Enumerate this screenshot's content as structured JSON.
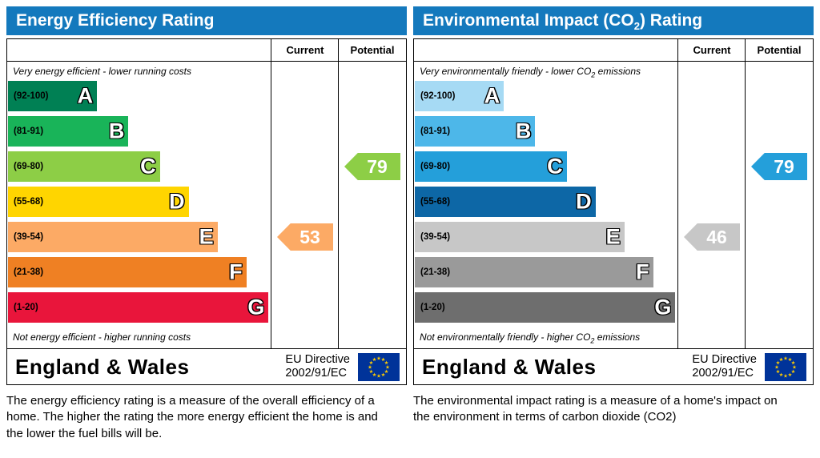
{
  "colors": {
    "header_blue": "#1479bd",
    "flag_blue": "#003399",
    "star_yellow": "#ffcc00",
    "border_black": "#000000"
  },
  "chart_data": [
    {
      "type": "bar",
      "title_pre": "Energy Efficiency Rating",
      "title_sub": "",
      "title_post": "",
      "columns": [
        "Current",
        "Potential"
      ],
      "top_caption_pre": "Very energy efficient - lower running costs",
      "top_caption_sub": "",
      "top_caption_post": "",
      "bottom_caption_pre": "Not energy efficient - higher running costs",
      "bottom_caption_sub": "",
      "bottom_caption_post": "",
      "bands": [
        {
          "range": "(92-100)",
          "letter": "A",
          "color": "#008054",
          "width_pct": 34
        },
        {
          "range": "(81-91)",
          "letter": "B",
          "color": "#19b459",
          "width_pct": 46
        },
        {
          "range": "(69-80)",
          "letter": "C",
          "color": "#8dce46",
          "width_pct": 58
        },
        {
          "range": "(55-68)",
          "letter": "D",
          "color": "#ffd500",
          "width_pct": 69
        },
        {
          "range": "(39-54)",
          "letter": "E",
          "color": "#fcaa65",
          "width_pct": 80
        },
        {
          "range": "(21-38)",
          "letter": "F",
          "color": "#ef8023",
          "width_pct": 91
        },
        {
          "range": "(1-20)",
          "letter": "G",
          "color": "#e9153b",
          "width_pct": 99.5
        }
      ],
      "current": {
        "value": 53,
        "band": "E",
        "band_index": 4,
        "color": "#fcaa65"
      },
      "potential": {
        "value": 79,
        "band": "C",
        "band_index": 2,
        "color": "#8dce46"
      },
      "footer_region": "England & Wales",
      "footer_directive": [
        "EU Directive",
        "2002/91/EC"
      ],
      "description": "The energy efficiency rating is a measure of the overall efficiency of a home.  The higher the rating the more energy efficient the home is and the lower the fuel bills will be."
    },
    {
      "type": "bar",
      "title_pre": "Environmental Impact (CO",
      "title_sub": "2",
      "title_post": ") Rating",
      "columns": [
        "Current",
        "Potential"
      ],
      "top_caption_pre": "Very environmentally friendly - lower CO",
      "top_caption_sub": "2",
      "top_caption_post": " emissions",
      "bottom_caption_pre": "Not environmentally friendly - higher CO",
      "bottom_caption_sub": "2",
      "bottom_caption_post": " emissions",
      "bands": [
        {
          "range": "(92-100)",
          "letter": "A",
          "color": "#a6daf4",
          "width_pct": 34
        },
        {
          "range": "(81-91)",
          "letter": "B",
          "color": "#4db7e9",
          "width_pct": 46
        },
        {
          "range": "(69-80)",
          "letter": "C",
          "color": "#249fda",
          "width_pct": 58
        },
        {
          "range": "(55-68)",
          "letter": "D",
          "color": "#0d67a6",
          "width_pct": 69
        },
        {
          "range": "(39-54)",
          "letter": "E",
          "color": "#c7c7c7",
          "width_pct": 80
        },
        {
          "range": "(21-38)",
          "letter": "F",
          "color": "#9a9a9a",
          "width_pct": 91
        },
        {
          "range": "(1-20)",
          "letter": "G",
          "color": "#6e6e6e",
          "width_pct": 99.5
        }
      ],
      "current": {
        "value": 46,
        "band": "E",
        "band_index": 4,
        "color": "#c7c7c7"
      },
      "potential": {
        "value": 79,
        "band": "C",
        "band_index": 2,
        "color": "#249fda"
      },
      "footer_region": "England & Wales",
      "footer_directive": [
        "EU Directive",
        "2002/91/EC"
      ],
      "description": "The environmental impact rating is a measure of a home's impact on the environment in terms of carbon dioxide (CO2)"
    }
  ]
}
